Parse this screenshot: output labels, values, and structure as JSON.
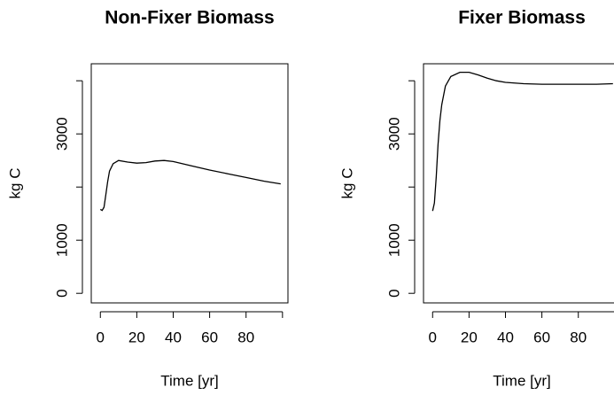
{
  "chart_data": [
    {
      "type": "line",
      "title": "Non-Fixer Biomass",
      "xlabel": "Time [yr]",
      "ylabel": "kg C",
      "x": [
        0,
        1,
        2,
        3,
        4,
        5,
        7,
        10,
        15,
        20,
        25,
        30,
        35,
        40,
        50,
        60,
        70,
        80,
        90,
        99
      ],
      "values": [
        1580,
        1560,
        1620,
        1850,
        2100,
        2300,
        2440,
        2500,
        2470,
        2450,
        2460,
        2490,
        2500,
        2480,
        2400,
        2320,
        2250,
        2180,
        2110,
        2060
      ],
      "color": "#000000",
      "xlim": [
        -5,
        103
      ],
      "ylim": [
        -180,
        4320
      ],
      "xticks": [
        0,
        20,
        40,
        60,
        80
      ],
      "xticks_unlabeled": [
        100
      ],
      "yticks": [
        0,
        1000,
        3000
      ],
      "yticks_unlabeled": [
        2000,
        4000
      ]
    },
    {
      "type": "line",
      "title": "Fixer Biomass",
      "xlabel": "Time [yr]",
      "ylabel": "kg C",
      "x": [
        0,
        1,
        2,
        3,
        4,
        5,
        7,
        10,
        15,
        20,
        25,
        30,
        35,
        40,
        50,
        60,
        70,
        80,
        90,
        99
      ],
      "values": [
        1550,
        1700,
        2200,
        2800,
        3250,
        3550,
        3900,
        4080,
        4160,
        4160,
        4110,
        4050,
        4000,
        3970,
        3945,
        3935,
        3935,
        3935,
        3935,
        3945
      ],
      "color": "#000000",
      "xlim": [
        -5,
        103
      ],
      "ylim": [
        -180,
        4320
      ],
      "xticks": [
        0,
        20,
        40,
        60,
        80
      ],
      "xticks_unlabeled": [
        100
      ],
      "yticks": [
        0,
        1000,
        3000
      ],
      "yticks_unlabeled": [
        2000,
        4000
      ]
    }
  ]
}
